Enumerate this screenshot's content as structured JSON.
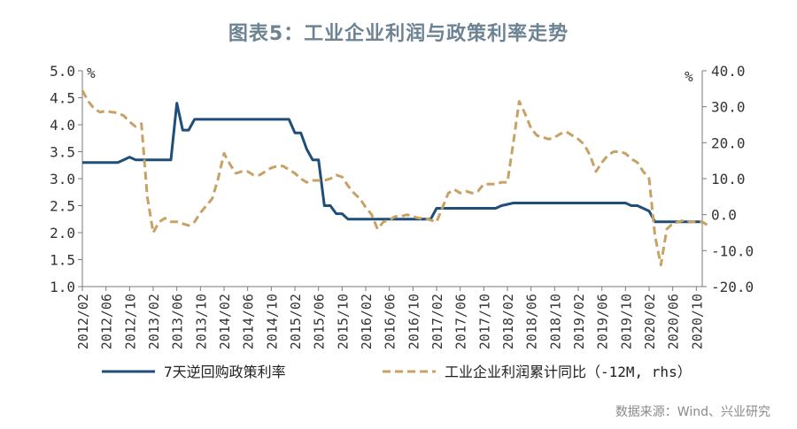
{
  "title": "图表5：工业企业利润与政策利率走势",
  "source": "数据来源：Wind、兴业研究",
  "chart_data": {
    "type": "line",
    "left_axis": {
      "unit": "%",
      "ylim": [
        1.0,
        5.0
      ],
      "ticks": [
        "1.0",
        "1.5",
        "2.0",
        "2.5",
        "3.0",
        "3.5",
        "4.0",
        "4.5",
        "5.0"
      ]
    },
    "right_axis": {
      "unit": "%",
      "ylim": [
        -20,
        40
      ],
      "ticks": [
        "-20.0",
        "-10.0",
        "0.0",
        "10.0",
        "20.0",
        "30.0",
        "40.0"
      ]
    },
    "x_ticks": [
      "2012/02",
      "2012/06",
      "2012/10",
      "2013/02",
      "2013/06",
      "2013/10",
      "2014/02",
      "2014/06",
      "2014/10",
      "2015/02",
      "2015/06",
      "2015/10",
      "2016/02",
      "2016/06",
      "2016/10",
      "2017/02",
      "2017/06",
      "2017/10",
      "2018/02",
      "2018/06",
      "2018/10",
      "2019/02",
      "2019/06",
      "2019/10",
      "2020/02",
      "2020/06",
      "2020/10"
    ],
    "legend_position": "bottom",
    "series": [
      {
        "name": "7天逆回购政策利率",
        "axis": "left",
        "color": "#1f4e79",
        "style": "solid",
        "points": [
          [
            "2012/02",
            3.3
          ],
          [
            "2012/06",
            3.3
          ],
          [
            "2012/08",
            3.3
          ],
          [
            "2012/09",
            3.35
          ],
          [
            "2012/10",
            3.4
          ],
          [
            "2012/11",
            3.35
          ],
          [
            "2013/01",
            3.35
          ],
          [
            "2013/04",
            3.35
          ],
          [
            "2013/05",
            3.35
          ],
          [
            "2013/06",
            4.4
          ],
          [
            "2013/07",
            3.9
          ],
          [
            "2013/08",
            3.9
          ],
          [
            "2013/09",
            4.1
          ],
          [
            "2013/10",
            4.1
          ],
          [
            "2014/06",
            4.1
          ],
          [
            "2014/12",
            4.1
          ],
          [
            "2015/01",
            4.1
          ],
          [
            "2015/02",
            3.85
          ],
          [
            "2015/03",
            3.85
          ],
          [
            "2015/04",
            3.55
          ],
          [
            "2015/05",
            3.35
          ],
          [
            "2015/06",
            3.35
          ],
          [
            "2015/07",
            2.5
          ],
          [
            "2015/08",
            2.5
          ],
          [
            "2015/09",
            2.35
          ],
          [
            "2015/10",
            2.35
          ],
          [
            "2015/11",
            2.25
          ],
          [
            "2016/06",
            2.25
          ],
          [
            "2017/01",
            2.25
          ],
          [
            "2017/02",
            2.45
          ],
          [
            "2017/06",
            2.45
          ],
          [
            "2017/12",
            2.45
          ],
          [
            "2018/01",
            2.5
          ],
          [
            "2018/03",
            2.55
          ],
          [
            "2018/06",
            2.55
          ],
          [
            "2019/06",
            2.55
          ],
          [
            "2019/10",
            2.55
          ],
          [
            "2019/11",
            2.5
          ],
          [
            "2019/12",
            2.5
          ],
          [
            "2020/01",
            2.45
          ],
          [
            "2020/02",
            2.4
          ],
          [
            "2020/03",
            2.2
          ],
          [
            "2020/06",
            2.2
          ],
          [
            "2020/10",
            2.2
          ],
          [
            "2020/11",
            2.2
          ]
        ]
      },
      {
        "name": "工业企业利润累计同比（-12M, rhs）",
        "axis": "right",
        "color": "#c8a165",
        "style": "dashed",
        "points": [
          [
            "2012/02",
            34.5
          ],
          [
            "2012/03",
            31.5
          ],
          [
            "2012/04",
            29.5
          ],
          [
            "2012/05",
            28.5
          ],
          [
            "2012/06",
            28.8
          ],
          [
            "2012/07",
            28.5
          ],
          [
            "2012/08",
            28.3
          ],
          [
            "2012/09",
            27.5
          ],
          [
            "2012/10",
            25.8
          ],
          [
            "2012/11",
            24.5
          ],
          [
            "2012/12",
            25.3
          ],
          [
            "2013/01",
            5
          ],
          [
            "2013/02",
            -5
          ],
          [
            "2013/03",
            -2
          ],
          [
            "2013/04",
            -1
          ],
          [
            "2013/05",
            -2
          ],
          [
            "2013/06",
            -2
          ],
          [
            "2013/07",
            -2.5
          ],
          [
            "2013/08",
            -3
          ],
          [
            "2013/09",
            -2
          ],
          [
            "2013/10",
            0.5
          ],
          [
            "2013/11",
            2.5
          ],
          [
            "2013/12",
            4.5
          ],
          [
            "2014/01",
            10
          ],
          [
            "2014/02",
            17
          ],
          [
            "2014/03",
            14
          ],
          [
            "2014/04",
            11.5
          ],
          [
            "2014/05",
            12
          ],
          [
            "2014/06",
            12
          ],
          [
            "2014/07",
            11
          ],
          [
            "2014/08",
            11
          ],
          [
            "2014/09",
            12
          ],
          [
            "2014/10",
            13
          ],
          [
            "2014/11",
            13.5
          ],
          [
            "2014/12",
            13.5
          ],
          [
            "2015/01",
            12.5
          ],
          [
            "2015/02",
            11.5
          ],
          [
            "2015/03",
            10
          ],
          [
            "2015/04",
            9
          ],
          [
            "2015/05",
            9.5
          ],
          [
            "2015/06",
            9.5
          ],
          [
            "2015/07",
            9.5
          ],
          [
            "2015/08",
            10
          ],
          [
            "2015/09",
            11
          ],
          [
            "2015/10",
            10.5
          ],
          [
            "2015/11",
            8
          ],
          [
            "2015/12",
            6
          ],
          [
            "2016/01",
            4.5
          ],
          [
            "2016/02",
            2
          ],
          [
            "2016/03",
            0
          ],
          [
            "2016/04",
            -4
          ],
          [
            "2016/05",
            -2
          ],
          [
            "2016/06",
            -1.5
          ],
          [
            "2016/07",
            -0.5
          ],
          [
            "2016/08",
            -0.5
          ],
          [
            "2016/09",
            0
          ],
          [
            "2016/10",
            -0.5
          ],
          [
            "2016/11",
            -1
          ],
          [
            "2016/12",
            -1
          ],
          [
            "2017/01",
            -1.5
          ],
          [
            "2017/02",
            -2
          ],
          [
            "2017/03",
            2
          ],
          [
            "2017/04",
            6
          ],
          [
            "2017/05",
            7
          ],
          [
            "2017/06",
            6
          ],
          [
            "2017/07",
            6.5
          ],
          [
            "2017/08",
            6
          ],
          [
            "2017/09",
            6.5
          ],
          [
            "2017/10",
            8.5
          ],
          [
            "2017/11",
            8.5
          ],
          [
            "2017/12",
            8.5
          ],
          [
            "2018/01",
            9
          ],
          [
            "2018/02",
            9
          ],
          [
            "2018/03",
            20
          ],
          [
            "2018/04",
            31.5
          ],
          [
            "2018/05",
            28
          ],
          [
            "2018/06",
            24
          ],
          [
            "2018/07",
            22
          ],
          [
            "2018/08",
            21.5
          ],
          [
            "2018/09",
            21
          ],
          [
            "2018/10",
            21.5
          ],
          [
            "2018/11",
            22.5
          ],
          [
            "2018/12",
            23
          ],
          [
            "2019/01",
            22
          ],
          [
            "2019/02",
            21
          ],
          [
            "2019/03",
            19.5
          ],
          [
            "2019/04",
            16.5
          ],
          [
            "2019/05",
            12
          ],
          [
            "2019/06",
            14.5
          ],
          [
            "2019/07",
            16.5
          ],
          [
            "2019/08",
            17.5
          ],
          [
            "2019/09",
            17.5
          ],
          [
            "2019/10",
            17
          ],
          [
            "2019/11",
            15.5
          ],
          [
            "2019/12",
            14.5
          ],
          [
            "2020/01",
            12
          ],
          [
            "2020/02",
            10
          ],
          [
            "2020/03",
            -6
          ],
          [
            "2020/04",
            -14
          ],
          [
            "2020/05",
            -4
          ],
          [
            "2020/06",
            -2.5
          ],
          [
            "2020/07",
            -2
          ],
          [
            "2020/08",
            -1.5
          ],
          [
            "2020/09",
            -2
          ],
          [
            "2020/10",
            -2
          ],
          [
            "2020/11",
            -2
          ],
          [
            "2020/12",
            -3
          ]
        ]
      }
    ]
  }
}
